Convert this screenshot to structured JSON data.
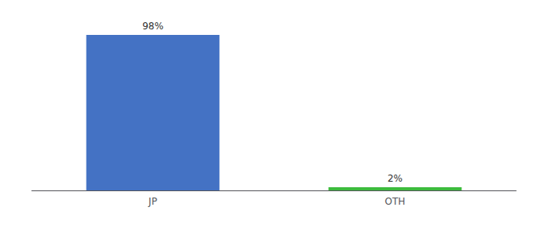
{
  "chart_data": {
    "type": "bar",
    "categories": [
      "JP",
      "OTH"
    ],
    "values": [
      98,
      2
    ],
    "value_labels": [
      "98%",
      "2%"
    ],
    "colors": [
      "#4472c4",
      "#3dbb3d"
    ],
    "ylim": [
      0,
      105
    ],
    "data_labels": true,
    "tick_labels": "x",
    "grid": false
  }
}
